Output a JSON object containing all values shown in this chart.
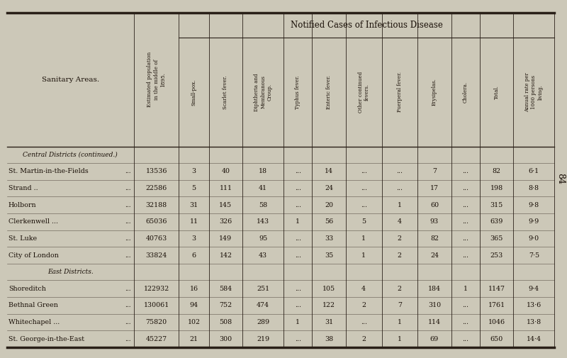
{
  "page_number": "84",
  "bg_color": "#ccc8b8",
  "header_main": "Notified Cases of Infectious Disease",
  "section1_label": "Central Districts (continued.)",
  "section2_label": "East Districts.",
  "sanitary_header": "Sanitary Areas.",
  "pop_header": "Estimated population\nin the middle of\n1895.",
  "sub_headers": [
    "Small-pox.",
    "Scarlet fever.",
    "Diphtheria and\nMembranous\nCroup.",
    "Typhus fever.",
    "Enteric fever.",
    "Other continued\nfevers.",
    "Puerperal fever.",
    "Erysipelas.",
    "Cholera.",
    "Total.",
    "Annual rate per\n1000 persons\nliving."
  ],
  "rows": [
    [
      "St. Martin-in-the-Fields",
      "...",
      "13536",
      "3",
      "40",
      "18",
      "...",
      "14",
      "...",
      "...",
      "7",
      "...",
      "82",
      "6·1"
    ],
    [
      "Strand ..",
      "...",
      "...",
      "...",
      "22586",
      "5",
      "111",
      "41",
      "...",
      "24",
      "...",
      "...",
      "17",
      "...",
      "198",
      "8·8"
    ],
    [
      "Holborn",
      "...",
      "...",
      "...",
      "32188",
      "31",
      "145",
      "58",
      "...",
      "20",
      "...",
      "1",
      "60",
      "...",
      "315",
      "9·8"
    ],
    [
      "Clerkenwell",
      "...",
      "...",
      "...",
      "65036",
      "11",
      "326",
      "143",
      "1",
      "56",
      "5",
      "4",
      "93",
      "...",
      "639",
      "9·9"
    ],
    [
      "St. Luke",
      "...",
      "...",
      "...",
      "40763",
      "3",
      "149",
      "95",
      "...",
      "33",
      "1",
      "2",
      "82",
      "...",
      "365",
      "9·0"
    ],
    [
      "City of London",
      "...",
      "...",
      "33824",
      "6",
      "142",
      "43",
      "...",
      "35",
      "1",
      "2",
      "24",
      "...",
      "253",
      "7·5"
    ],
    [
      "Shoreditch",
      "...",
      "...",
      "...",
      "122932",
      "16",
      "584",
      "251",
      "...",
      "105",
      "4",
      "2",
      "184",
      "1",
      "1147",
      "9·4"
    ],
    [
      "Bethnal Green",
      "...",
      "...",
      "130061",
      "94",
      "752",
      "474",
      "...",
      "122",
      "2",
      "7",
      "310",
      "...",
      "1761",
      "13·6"
    ],
    [
      "Whitechapel ...",
      "...",
      "...",
      "75820",
      "102",
      "508",
      "289",
      "1",
      "31",
      "...",
      "1",
      "114",
      "...",
      "1046",
      "13·8"
    ],
    [
      "St. George-in-the-East",
      "...",
      "45227",
      "21",
      "300",
      "219",
      "...",
      "38",
      "2",
      "1",
      "69",
      "...",
      "650",
      "14·4"
    ]
  ],
  "row_data": [
    {
      "name": "St. Martin-in-the-Fields",
      "dots": "...",
      "pop": "13536",
      "smallpox": "3",
      "scarlet": "40",
      "diph": "18",
      "typhus": "...",
      "enteric": "14",
      "other": "...",
      "puerp": "...",
      "erys": "7",
      "chol": "...",
      "total": "82",
      "rate": "6·1"
    },
    {
      "name": "Strand ..",
      "dots": "...",
      "pop": "22586",
      "smallpox": "5",
      "scarlet": "111",
      "diph": "41",
      "typhus": "...",
      "enteric": "24",
      "other": "...",
      "puerp": "...",
      "erys": "17",
      "chol": "...",
      "total": "198",
      "rate": "8·8"
    },
    {
      "name": "Holborn",
      "dots": "...",
      "pop": "32188",
      "smallpox": "31",
      "scarlet": "145",
      "diph": "58",
      "typhus": "...",
      "enteric": "20",
      "other": "...",
      "puerp": "1",
      "erys": "60",
      "chol": "...",
      "total": "315",
      "rate": "9·8"
    },
    {
      "name": "Clerkenwell ...",
      "dots": "...",
      "pop": "65036",
      "smallpox": "11",
      "scarlet": "326",
      "diph": "143",
      "typhus": "1",
      "enteric": "56",
      "other": "5",
      "puerp": "4",
      "erys": "93",
      "chol": "...",
      "total": "639",
      "rate": "9·9"
    },
    {
      "name": "St. Luke",
      "dots": "...",
      "pop": "40763",
      "smallpox": "3",
      "scarlet": "149",
      "diph": "95",
      "typhus": "...",
      "enteric": "33",
      "other": "1",
      "puerp": "2",
      "erys": "82",
      "chol": "...",
      "total": "365",
      "rate": "9·0"
    },
    {
      "name": "City of London",
      "dots": "...",
      "pop": "33824",
      "smallpox": "6",
      "scarlet": "142",
      "diph": "43",
      "typhus": "...",
      "enteric": "35",
      "other": "1",
      "puerp": "2",
      "erys": "24",
      "chol": "...",
      "total": "253",
      "rate": "7·5"
    },
    {
      "name": "Shoreditch",
      "dots": "...",
      "pop": "122932",
      "smallpox": "16",
      "scarlet": "584",
      "diph": "251",
      "typhus": "...",
      "enteric": "105",
      "other": "4",
      "puerp": "2",
      "erys": "184",
      "chol": "1",
      "total": "1147",
      "rate": "9·4"
    },
    {
      "name": "Bethnal Green",
      "dots": "...",
      "pop": "130061",
      "smallpox": "94",
      "scarlet": "752",
      "diph": "474",
      "typhus": "...",
      "enteric": "122",
      "other": "2",
      "puerp": "7",
      "erys": "310",
      "chol": "...",
      "total": "1761",
      "rate": "13·6"
    },
    {
      "name": "Whitechapel ...",
      "dots": "...",
      "pop": "75820",
      "smallpox": "102",
      "scarlet": "508",
      "diph": "289",
      "typhus": "1",
      "enteric": "31",
      "other": "...",
      "puerp": "1",
      "erys": "114",
      "chol": "...",
      "total": "1046",
      "rate": "13·8"
    },
    {
      "name": "St. George-in-the-East",
      "dots": "...",
      "pop": "45227",
      "smallpox": "21",
      "scarlet": "300",
      "diph": "219",
      "typhus": "...",
      "enteric": "38",
      "other": "2",
      "puerp": "1",
      "erys": "69",
      "chol": "...",
      "total": "650",
      "rate": "14·4"
    }
  ],
  "section1_rows": 6,
  "section2_rows": 4,
  "text_color": "#1a1008",
  "line_color": "#2a2018",
  "col_widths_rel": [
    17,
    6,
    4,
    4.5,
    5.5,
    3.8,
    4.5,
    4.8,
    4.8,
    4.5,
    3.8,
    4.5,
    5.5
  ]
}
